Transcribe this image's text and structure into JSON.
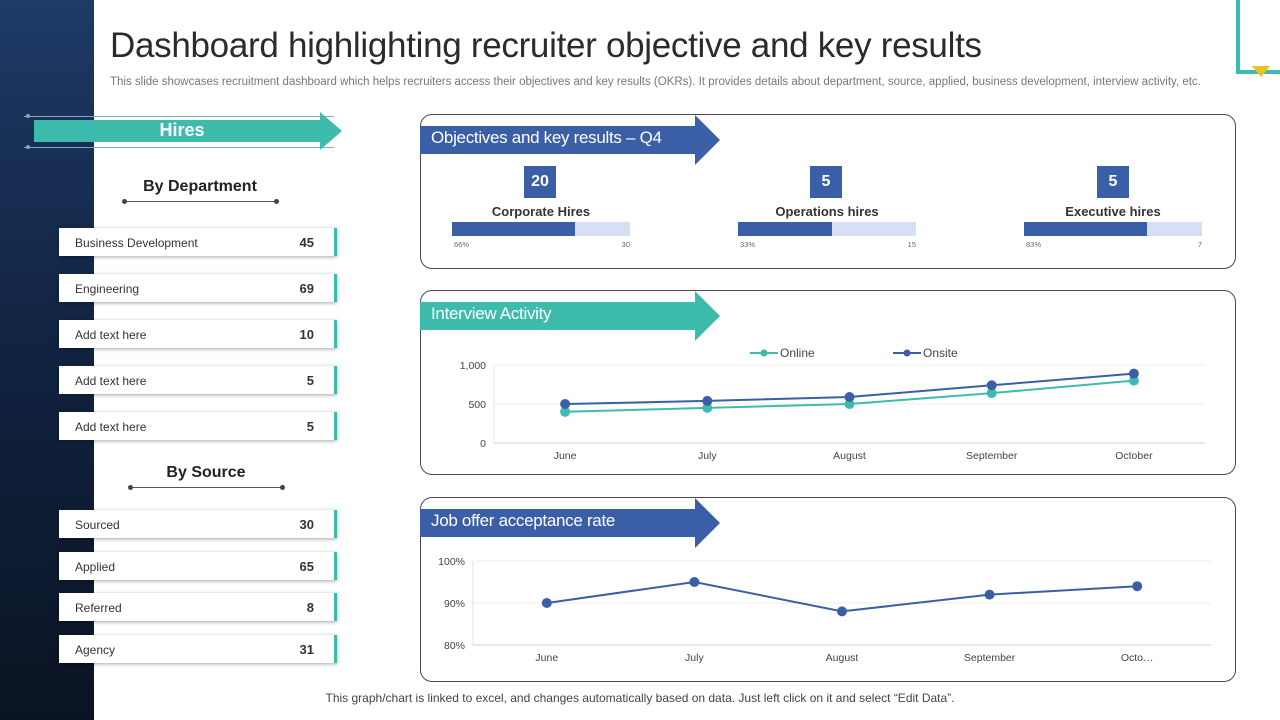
{
  "header": {
    "title": "Dashboard highlighting recruiter objective and key results",
    "subtitle": "This slide showcases recruitment dashboard which helps recruiters access their objectives and key results (OKRs). It provides details about department, source, applied, business development, interview activity,  etc."
  },
  "hires": {
    "label": "Hires",
    "by_department": {
      "heading": "By Department",
      "rows": [
        {
          "label": "Business Development",
          "value": "45"
        },
        {
          "label": "Engineering",
          "value": "69"
        },
        {
          "label": "Add text here",
          "value": "10"
        },
        {
          "label": "Add text here",
          "value": "5"
        },
        {
          "label": "Add text here",
          "value": "5"
        }
      ]
    },
    "by_source": {
      "heading": "By Source",
      "rows": [
        {
          "label": "Sourced",
          "value": "30"
        },
        {
          "label": "Applied",
          "value": "65"
        },
        {
          "label": "Referred",
          "value": "8"
        },
        {
          "label": "Agency",
          "value": "31"
        }
      ]
    }
  },
  "okr": {
    "title": "Objectives and key results – Q4",
    "kpis": [
      {
        "value": "20",
        "label": "Corporate Hires",
        "low": "66%",
        "high": "30",
        "progress": 0.69
      },
      {
        "value": "5",
        "label": "Operations hires",
        "low": "33%",
        "high": "15",
        "progress": 0.53
      },
      {
        "value": "5",
        "label": "Executive hires",
        "low": "83%",
        "high": "7",
        "progress": 0.69
      }
    ]
  },
  "interview": {
    "title": "Interview Activity"
  },
  "offer": {
    "title": "Job offer acceptance rate"
  },
  "colors": {
    "teal": "#3dbcae",
    "blue": "#3b5fa7",
    "online": "#3dbcae",
    "onsite": "#3b5fa7"
  },
  "chart_data": [
    {
      "type": "line",
      "categories": [
        "June",
        "July",
        "August",
        "September",
        "October"
      ],
      "series": [
        {
          "name": "Online",
          "values": [
            400,
            450,
            500,
            640,
            800
          ]
        },
        {
          "name": "Onsite",
          "values": [
            500,
            540,
            590,
            740,
            890
          ]
        }
      ],
      "yticks": [
        "0",
        "500",
        "1,000"
      ],
      "ylim": [
        0,
        1000
      ],
      "grid": true,
      "legend": "top"
    },
    {
      "type": "line",
      "categories": [
        "June",
        "July",
        "August",
        "September",
        "Octo…"
      ],
      "series": [
        {
          "values": [
            90,
            95,
            88,
            92,
            94
          ]
        }
      ],
      "yticks": [
        "80%",
        "90%",
        "100%"
      ],
      "ylim": [
        80,
        100
      ],
      "grid": true
    }
  ],
  "footer": "This graph/chart is linked to excel,  and changes automatically based on data. Just left click on it and select “Edit Data”."
}
